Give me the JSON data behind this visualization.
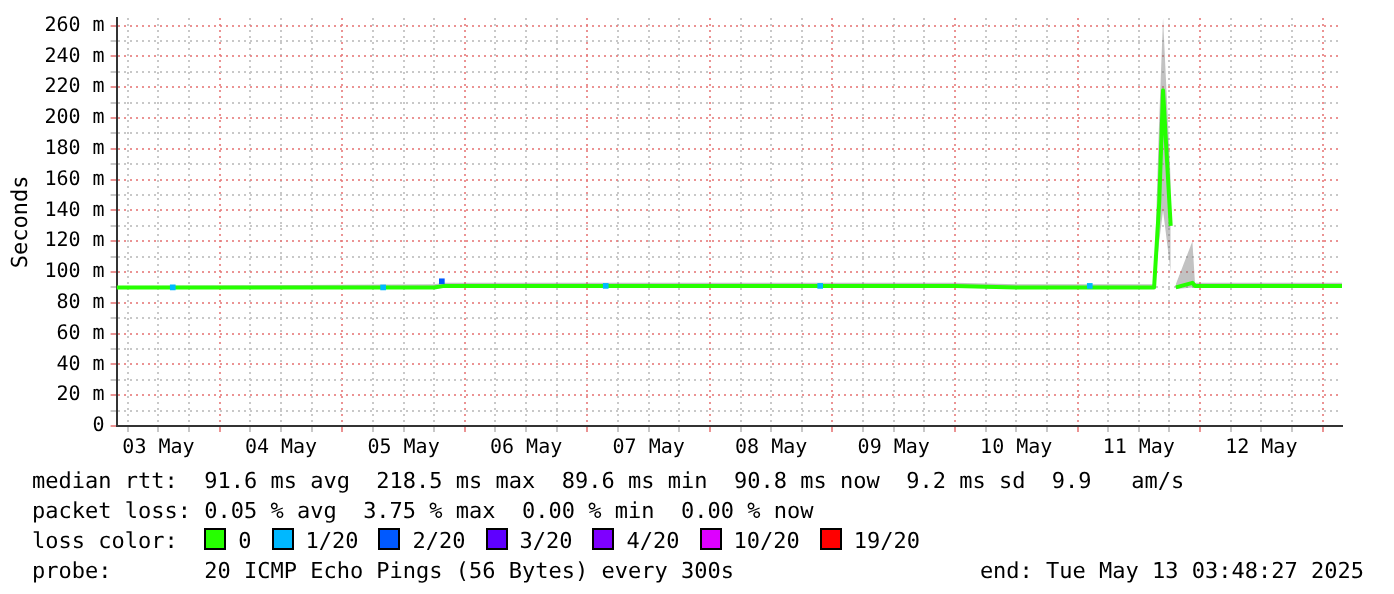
{
  "chart_data": {
    "type": "line",
    "ylabel": "Seconds",
    "legend_title": "loss color:",
    "legend": "bottom",
    "grid": true,
    "marker": "none",
    "line_style": "solid",
    "xlim": [
      "2025-05-03T03:48",
      "2025-05-13T03:48"
    ],
    "xticks": [
      {
        "value": "2025-05-03T06:00",
        "label": null
      },
      {
        "value": "2025-05-03T12:00",
        "label": "03 May"
      },
      {
        "value": "2025-05-03T18:00",
        "label": null
      },
      {
        "value": "2025-05-04T00:00",
        "label": null
      },
      {
        "value": "2025-05-04T06:00",
        "label": null
      },
      {
        "value": "2025-05-04T12:00",
        "label": "04 May"
      },
      {
        "value": "2025-05-04T18:00",
        "label": null
      },
      {
        "value": "2025-05-05T00:00",
        "label": null
      },
      {
        "value": "2025-05-05T06:00",
        "label": null
      },
      {
        "value": "2025-05-05T12:00",
        "label": "05 May"
      },
      {
        "value": "2025-05-05T18:00",
        "label": null
      },
      {
        "value": "2025-05-06T00:00",
        "label": null
      },
      {
        "value": "2025-05-06T06:00",
        "label": null
      },
      {
        "value": "2025-05-06T12:00",
        "label": "06 May"
      },
      {
        "value": "2025-05-06T18:00",
        "label": null
      },
      {
        "value": "2025-05-07T00:00",
        "label": null
      },
      {
        "value": "2025-05-07T06:00",
        "label": null
      },
      {
        "value": "2025-05-07T12:00",
        "label": "07 May"
      },
      {
        "value": "2025-05-07T18:00",
        "label": null
      },
      {
        "value": "2025-05-08T00:00",
        "label": null
      },
      {
        "value": "2025-05-08T06:00",
        "label": null
      },
      {
        "value": "2025-05-08T12:00",
        "label": "08 May"
      },
      {
        "value": "2025-05-08T18:00",
        "label": null
      },
      {
        "value": "2025-05-09T00:00",
        "label": null
      },
      {
        "value": "2025-05-09T06:00",
        "label": null
      },
      {
        "value": "2025-05-09T12:00",
        "label": "09 May"
      },
      {
        "value": "2025-05-09T18:00",
        "label": null
      },
      {
        "value": "2025-05-10T00:00",
        "label": null
      },
      {
        "value": "2025-05-10T06:00",
        "label": null
      },
      {
        "value": "2025-05-10T12:00",
        "label": "10 May"
      },
      {
        "value": "2025-05-10T18:00",
        "label": null
      },
      {
        "value": "2025-05-11T00:00",
        "label": null
      },
      {
        "value": "2025-05-11T06:00",
        "label": null
      },
      {
        "value": "2025-05-11T12:00",
        "label": "11 May"
      },
      {
        "value": "2025-05-11T18:00",
        "label": null
      },
      {
        "value": "2025-05-12T00:00",
        "label": null
      },
      {
        "value": "2025-05-12T06:00",
        "label": null
      },
      {
        "value": "2025-05-12T12:00",
        "label": "12 May"
      },
      {
        "value": "2025-05-12T18:00",
        "label": null
      },
      {
        "value": "2025-05-13T00:00",
        "label": null
      }
    ],
    "ylim": [
      0,
      265
    ],
    "yticks": [
      {
        "value": 0,
        "label": "0"
      },
      {
        "value": 10,
        "label": null
      },
      {
        "value": 20,
        "label": "20 m"
      },
      {
        "value": 30,
        "label": null
      },
      {
        "value": 40,
        "label": "40 m"
      },
      {
        "value": 50,
        "label": null
      },
      {
        "value": 60,
        "label": "60 m"
      },
      {
        "value": 70,
        "label": null
      },
      {
        "value": 80,
        "label": "80 m"
      },
      {
        "value": 90,
        "label": null
      },
      {
        "value": 100,
        "label": "100 m"
      },
      {
        "value": 110,
        "label": null
      },
      {
        "value": 120,
        "label": "120 m"
      },
      {
        "value": 130,
        "label": null
      },
      {
        "value": 140,
        "label": "140 m"
      },
      {
        "value": 150,
        "label": null
      },
      {
        "value": 160,
        "label": "160 m"
      },
      {
        "value": 170,
        "label": null
      },
      {
        "value": 180,
        "label": "180 m"
      },
      {
        "value": 190,
        "label": null
      },
      {
        "value": 200,
        "label": "200 m"
      },
      {
        "value": 210,
        "label": null
      },
      {
        "value": 220,
        "label": "220 m"
      },
      {
        "value": 230,
        "label": null
      },
      {
        "value": 240,
        "label": "240 m"
      },
      {
        "value": 250,
        "label": null
      },
      {
        "value": 260,
        "label": "260 m"
      }
    ],
    "series": [
      {
        "name": "0",
        "color": "#26ff00",
        "x": [
          "2025-05-03T03:48",
          "2025-05-05T18:00",
          "2025-05-05T20:00",
          "2025-05-07T00:00",
          "2025-05-10T00:00",
          "2025-05-10T12:00",
          "2025-05-11T15:00",
          "2025-05-11T16:00",
          "2025-05-11T16:45",
          "2025-05-11T18:15",
          "2025-05-11T18:45",
          "2025-05-11T19:15",
          "2025-05-11T22:30",
          "2025-05-11T23:00",
          "2025-05-13T03:48"
        ],
        "values": [
          90,
          90,
          91,
          91,
          91,
          90,
          90,
          145,
          218,
          130,
          null,
          90,
          93,
          91,
          91
        ],
        "lower": [
          89,
          89,
          90,
          90,
          90,
          89,
          89,
          120,
          140,
          100,
          null,
          89,
          90,
          90,
          90
        ],
        "upper": [
          91,
          92,
          93,
          93,
          93,
          92,
          92,
          200,
          265,
          160,
          null,
          92,
          120,
          93,
          93
        ]
      },
      {
        "name": "1/20",
        "color": "#00b8ff",
        "type": "scatter",
        "marker": "square",
        "x": [
          "2025-05-03T14:48",
          "2025-05-05T08:00",
          "2025-05-07T03:36",
          "2025-05-08T21:36",
          "2025-05-11T02:24"
        ],
        "values": [
          90,
          90,
          91,
          91,
          91
        ]
      },
      {
        "name": "2/20",
        "color": "#0059ff",
        "type": "scatter",
        "marker": "square",
        "x": [
          "2025-05-05T19:30"
        ],
        "values": [
          94
        ]
      },
      {
        "name": "3/20",
        "color": "#5e00ff",
        "type": "scatter",
        "marker": "square"
      },
      {
        "name": "4/20",
        "color": "#7e00ff",
        "type": "scatter",
        "marker": "square"
      },
      {
        "name": "10/20",
        "color": "#dd00ff",
        "type": "scatter",
        "marker": "square"
      },
      {
        "name": "19/20",
        "color": "#ff0000",
        "type": "scatter",
        "marker": "square"
      }
    ],
    "annotations": [
      "median rtt:  91.6 ms avg  218.5 ms max  89.6 ms min  90.8 ms now  9.2 ms sd  9.9   am/s",
      "packet loss: 0.05 % avg  3.75 % max  0.00 % min  0.00 % now",
      "probe:       20 ICMP Echo Pings (56 Bytes) every 300s",
      "end: Tue May 13 03:48:27 2025"
    ]
  }
}
